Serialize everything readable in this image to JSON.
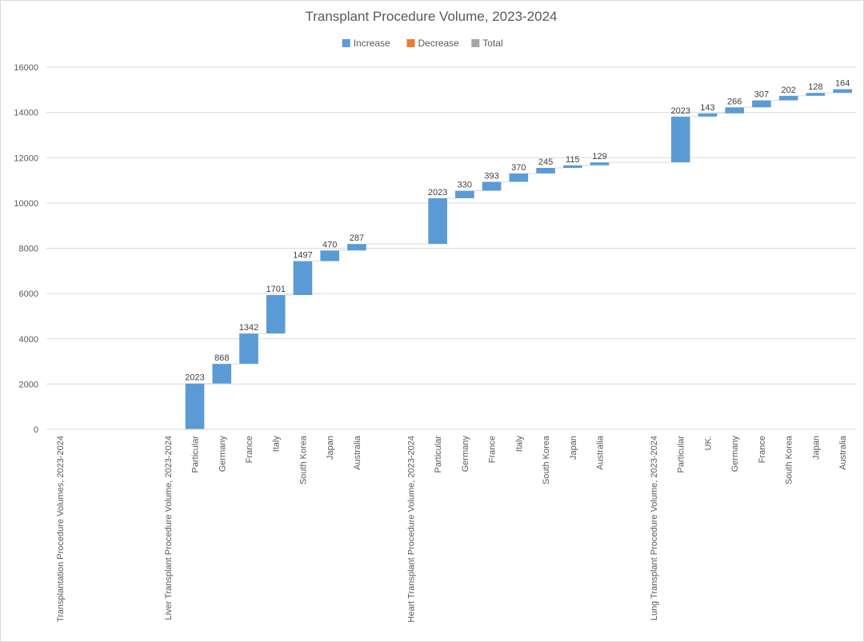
{
  "chart_data": {
    "type": "bar",
    "subtype": "waterfall",
    "title": "Transplant Procedure Volume, 2023-2024",
    "legend": {
      "placement": "top",
      "entries": [
        {
          "name": "Increase",
          "color": "#5b9bd5"
        },
        {
          "name": "Decrease",
          "color": "#ed7d31"
        },
        {
          "name": "Total",
          "color": "#a5a5a5"
        }
      ]
    },
    "ylim": [
      0,
      16000
    ],
    "yticks": [
      0,
      2000,
      4000,
      6000,
      8000,
      10000,
      12000,
      14000,
      16000
    ],
    "grid": true,
    "categories": [
      "Transplantation Procedure Volumes, 2023-2024",
      "",
      "",
      "",
      "Liver Transplant Procedure Volume, 2023-2024",
      "Particular",
      "Germany",
      "France",
      "Italy",
      "South Korea",
      "Japan",
      "Australia",
      "",
      "Heart Transplant Procedure Volume, 2023-2024",
      "Particular",
      "Germany",
      "France",
      "Italy",
      "South Korea",
      "Japan",
      "Australia",
      "",
      "Lung Transplant Procedure Volume, 2023-2024",
      "Particular",
      "UK.",
      "Germany",
      "France",
      "South Korea",
      "Japan",
      "Australia"
    ],
    "values": [
      null,
      null,
      null,
      null,
      null,
      2023,
      868,
      1342,
      1701,
      1497,
      470,
      287,
      null,
      null,
      2023,
      330,
      393,
      370,
      245,
      115,
      129,
      null,
      null,
      2023,
      143,
      266,
      307,
      202,
      128,
      164
    ],
    "series": [
      {
        "name": "Increase",
        "values": [
          null,
          null,
          null,
          null,
          null,
          2023,
          868,
          1342,
          1701,
          1497,
          470,
          287,
          null,
          null,
          2023,
          330,
          393,
          370,
          245,
          115,
          129,
          null,
          null,
          2023,
          143,
          266,
          307,
          202,
          128,
          164
        ]
      }
    ]
  }
}
